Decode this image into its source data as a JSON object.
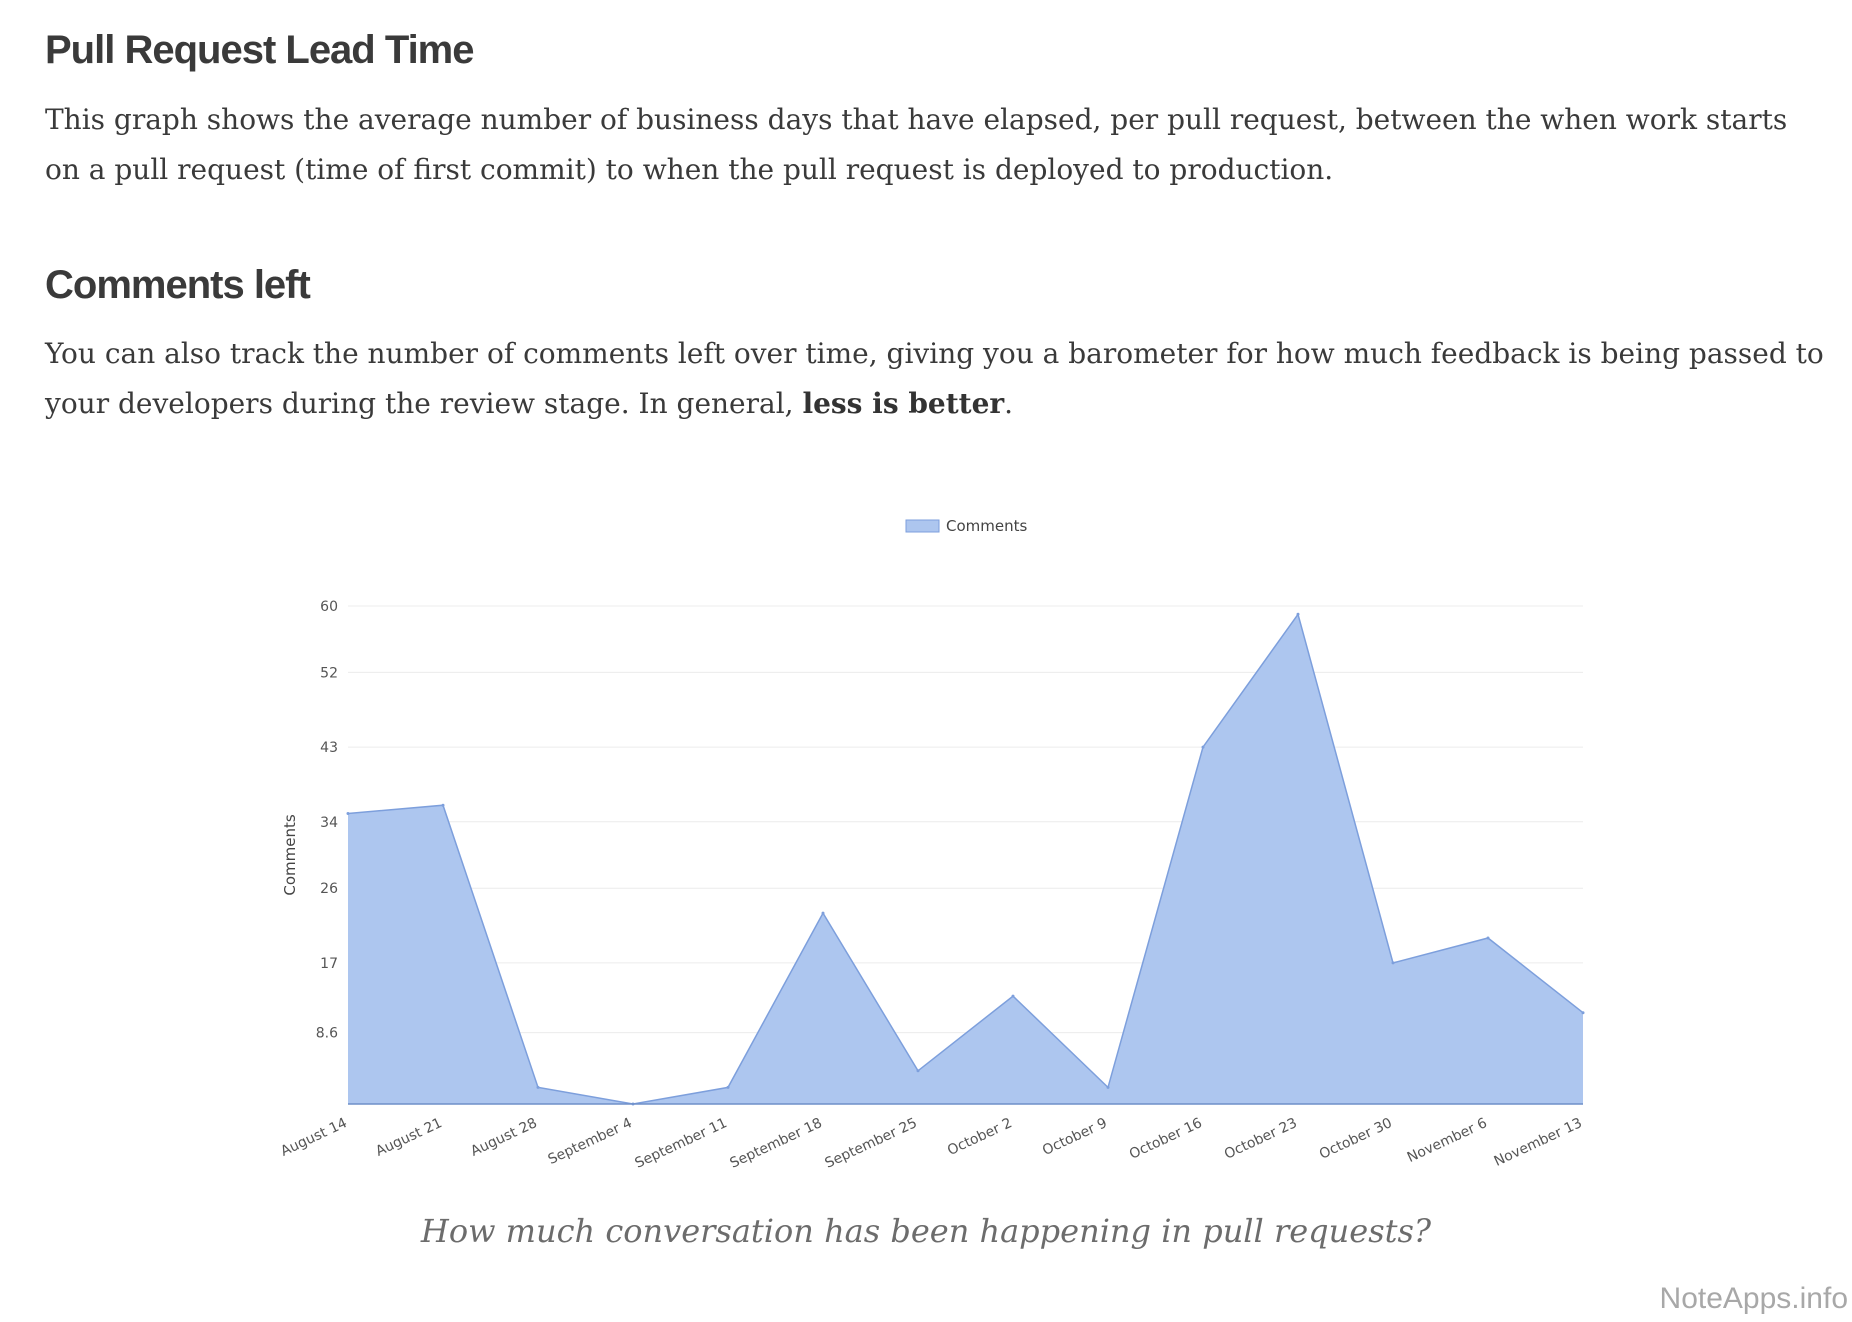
{
  "sections": [
    {
      "title": "Pull Request Lead Time",
      "body": "This graph shows the average number of business days that have elapsed, per pull request, between the when work starts on a pull request (time of first commit) to when the pull request is deployed to production."
    },
    {
      "title": "Comments left",
      "body_prefix": "You can also track the number of comments left over time, giving you a barometer for how much feedback is being passed to your developers during the review stage. In general, ",
      "body_bold": "less is better",
      "body_suffix": "."
    }
  ],
  "caption": "How much conversation has been happening in pull requests?",
  "watermark": "NoteApps.info",
  "colors": {
    "area_fill": "#adc6ef",
    "area_stroke": "#7d9fdc",
    "grid": "#ececec"
  },
  "chart_data": {
    "type": "area",
    "categories": [
      "August 14",
      "August 21",
      "August 28",
      "September  4",
      "September 11",
      "September 18",
      "September 25",
      "October  2",
      "October  9",
      "October 16",
      "October 23",
      "October 30",
      "November  6",
      "November 13"
    ],
    "series": [
      {
        "name": "Comments",
        "values": [
          35,
          36,
          2,
          0,
          2,
          23,
          4,
          13,
          2,
          43,
          59,
          17,
          20,
          11
        ]
      }
    ],
    "ylabel": "Comments",
    "yticks": [
      "8.6",
      "17",
      "26",
      "34",
      "43",
      "52",
      "60"
    ],
    "ylim": [
      0,
      60
    ],
    "legend": "top-center",
    "grid": true
  }
}
